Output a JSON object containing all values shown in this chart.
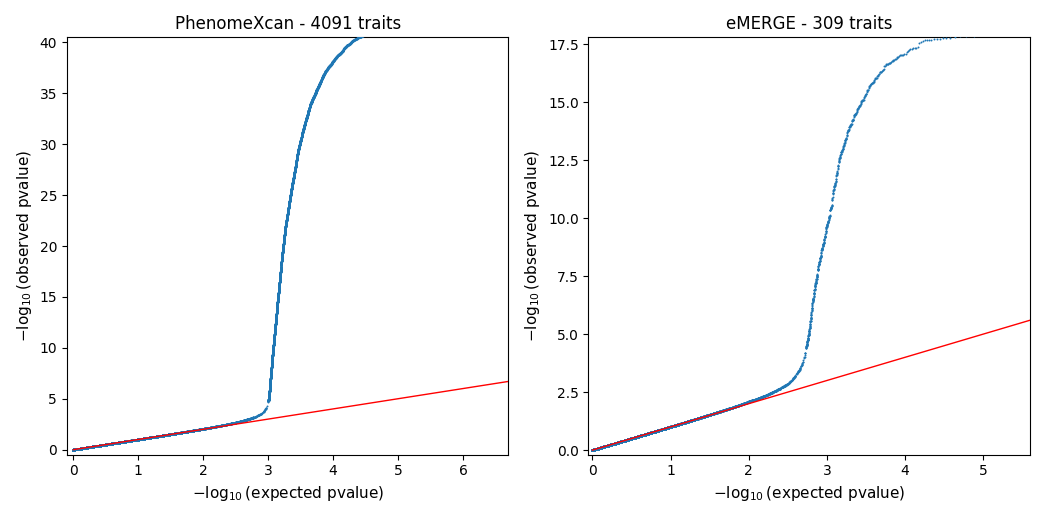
{
  "title_left": "PhenomeXcan - 4091 traits",
  "title_right": "eMERGE - 309 traits",
  "xlabel": "$-\\log_{10}$(expected pvalue)",
  "ylabel": "$-\\log_{10}$(observed pvalue)",
  "left_xlim": [
    -0.1,
    6.7
  ],
  "left_ylim": [
    -0.5,
    40.5
  ],
  "right_xlim": [
    -0.05,
    5.6
  ],
  "right_ylim": [
    -0.2,
    17.8
  ],
  "dot_color": "#1f77b4",
  "line_color": "red",
  "dot_size": 2.0,
  "left_yticks": [
    0,
    5,
    10,
    15,
    20,
    25,
    30,
    35,
    40
  ],
  "right_yticks": [
    0.0,
    2.5,
    5.0,
    7.5,
    10.0,
    12.5,
    15.0,
    17.5
  ],
  "left_xticks": [
    0,
    1,
    2,
    3,
    4,
    5,
    6
  ],
  "right_xticks": [
    0,
    1,
    2,
    3,
    4,
    5
  ]
}
